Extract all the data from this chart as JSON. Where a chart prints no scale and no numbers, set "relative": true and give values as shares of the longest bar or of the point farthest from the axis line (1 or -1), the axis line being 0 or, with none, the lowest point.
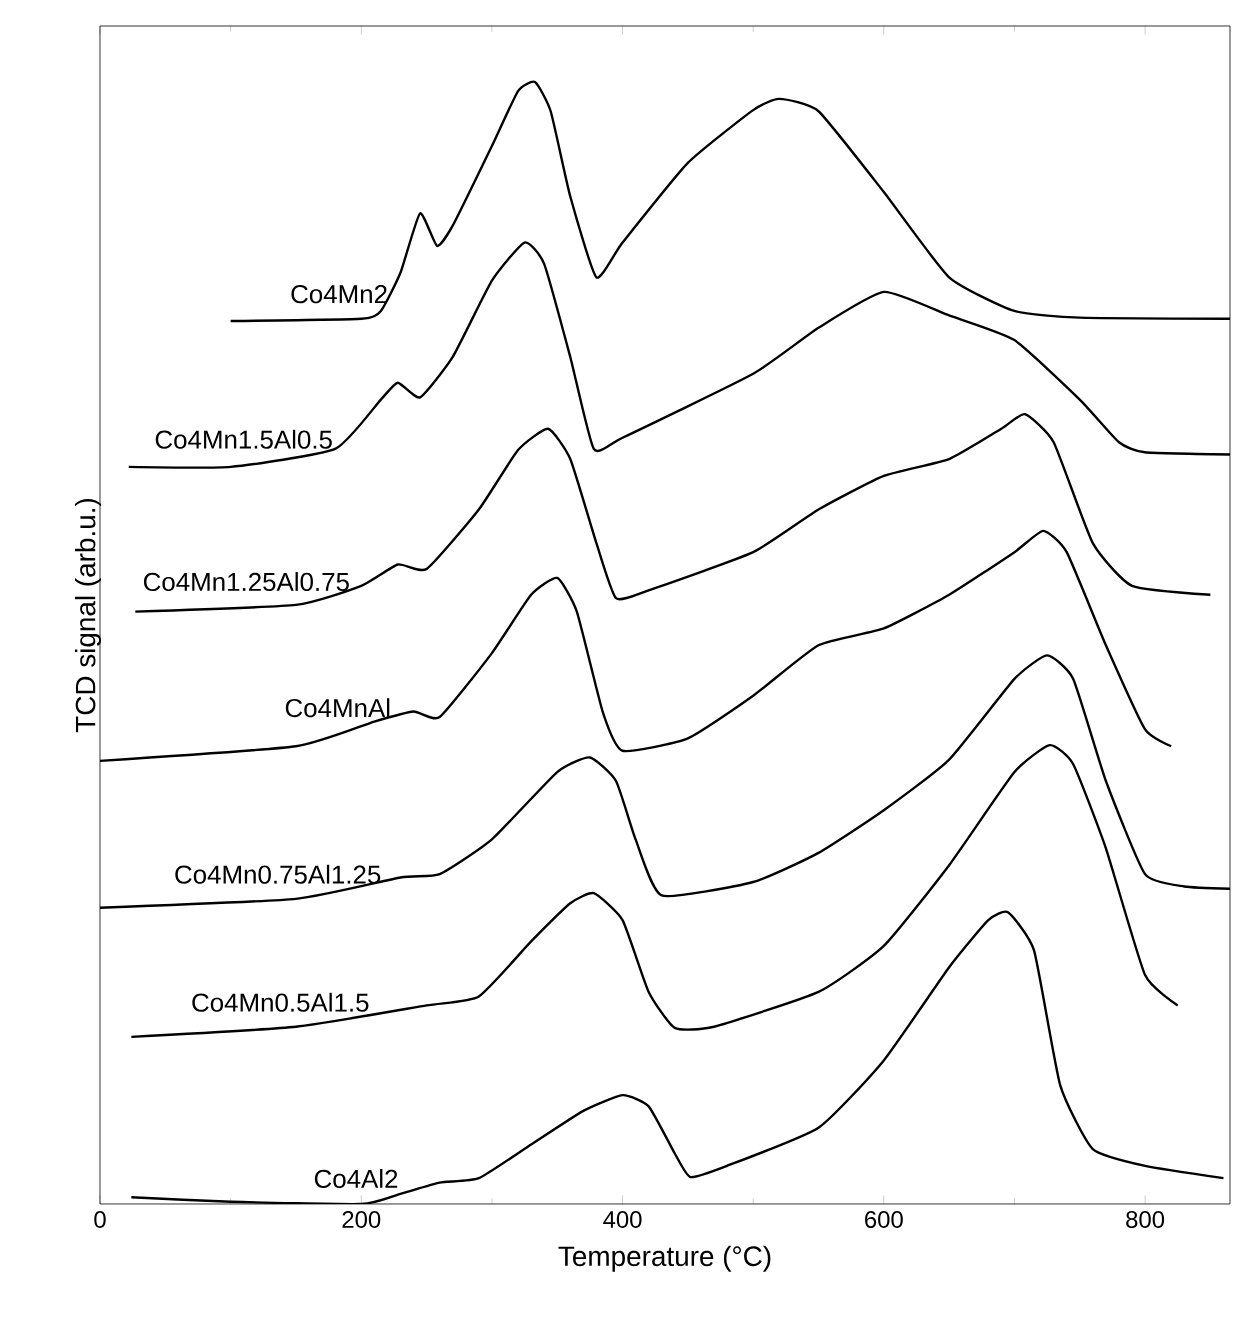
{
  "chart_data": {
    "type": "line",
    "relative": true,
    "xlabel": "Temperature (°C)",
    "ylabel": "TCD signal (arb.u.)",
    "xlim": [
      0,
      865
    ],
    "xticks": [
      0,
      200,
      400,
      600,
      800
    ],
    "grid": false,
    "legend": false,
    "marker": "none",
    "line_style": "solid",
    "series": [
      {
        "name": "Co4Mn2",
        "color": "#000000",
        "x": [
          100,
          200,
          215,
          230,
          245,
          258,
          270,
          300,
          320,
          333,
          345,
          360,
          380,
          400,
          450,
          500,
          520,
          550,
          600,
          650,
          700,
          750,
          865
        ],
        "values": [
          0.787,
          0.789,
          0.796,
          0.83,
          0.883,
          0.854,
          0.872,
          0.943,
          0.992,
          1.0,
          0.974,
          0.898,
          0.826,
          0.857,
          0.928,
          0.975,
          0.985,
          0.974,
          0.902,
          0.826,
          0.796,
          0.79,
          0.789
        ]
      },
      {
        "name": "Co4Mn1.5Al0.5",
        "color": "#000000",
        "x": [
          22,
          100,
          180,
          215,
          228,
          245,
          270,
          300,
          325,
          340,
          360,
          378,
          400,
          500,
          550,
          600,
          650,
          700,
          750,
          780,
          800,
          865
        ],
        "values": [
          0.657,
          0.657,
          0.673,
          0.717,
          0.732,
          0.719,
          0.755,
          0.823,
          0.857,
          0.838,
          0.755,
          0.673,
          0.683,
          0.74,
          0.781,
          0.813,
          0.792,
          0.77,
          0.717,
          0.679,
          0.67,
          0.668
        ]
      },
      {
        "name": "Co4Mn1.25Al0.75",
        "color": "#000000",
        "x": [
          27,
          150,
          200,
          228,
          250,
          290,
          320,
          343,
          360,
          380,
          395,
          420,
          500,
          550,
          600,
          650,
          690,
          708,
          730,
          760,
          790,
          850
        ],
        "values": [
          0.528,
          0.534,
          0.551,
          0.57,
          0.566,
          0.619,
          0.672,
          0.691,
          0.664,
          0.589,
          0.54,
          0.547,
          0.581,
          0.619,
          0.649,
          0.664,
          0.691,
          0.704,
          0.679,
          0.589,
          0.551,
          0.543
        ]
      },
      {
        "name": "Co4MnAl",
        "color": "#000000",
        "x": [
          0,
          150,
          210,
          240,
          260,
          300,
          330,
          350,
          365,
          385,
          400,
          450,
          500,
          550,
          600,
          650,
          700,
          722,
          740,
          770,
          800,
          820
        ],
        "values": [
          0.395,
          0.408,
          0.43,
          0.439,
          0.434,
          0.491,
          0.543,
          0.558,
          0.528,
          0.438,
          0.404,
          0.415,
          0.453,
          0.498,
          0.513,
          0.543,
          0.581,
          0.6,
          0.581,
          0.498,
          0.423,
          0.408
        ]
      },
      {
        "name": "Co4Mn0.75Al1.25",
        "color": "#000000",
        "x": [
          0,
          150,
          230,
          260,
          300,
          350,
          375,
          395,
          410,
          430,
          500,
          550,
          600,
          650,
          700,
          725,
          745,
          770,
          800,
          830,
          865
        ],
        "values": [
          0.264,
          0.272,
          0.291,
          0.294,
          0.325,
          0.385,
          0.398,
          0.377,
          0.325,
          0.275,
          0.287,
          0.313,
          0.351,
          0.396,
          0.468,
          0.489,
          0.468,
          0.377,
          0.294,
          0.283,
          0.281
        ]
      },
      {
        "name": "Co4Mn0.5Al1.5",
        "color": "#000000",
        "x": [
          24,
          150,
          250,
          290,
          330,
          360,
          378,
          400,
          420,
          440,
          470,
          550,
          600,
          650,
          700,
          727,
          745,
          770,
          800,
          825
        ],
        "values": [
          0.149,
          0.158,
          0.177,
          0.185,
          0.234,
          0.268,
          0.277,
          0.253,
          0.189,
          0.157,
          0.158,
          0.189,
          0.23,
          0.302,
          0.385,
          0.409,
          0.392,
          0.317,
          0.204,
          0.177
        ]
      },
      {
        "name": "Co4Al2",
        "color": "#000000",
        "x": [
          24,
          100,
          200,
          230,
          260,
          290,
          330,
          370,
          400,
          420,
          440,
          452,
          480,
          550,
          600,
          650,
          680,
          695,
          715,
          735,
          760,
          800,
          860
        ],
        "values": [
          0.006,
          0.002,
          0.0,
          0.009,
          0.019,
          0.023,
          0.053,
          0.083,
          0.097,
          0.087,
          0.045,
          0.024,
          0.034,
          0.068,
          0.128,
          0.211,
          0.253,
          0.26,
          0.226,
          0.106,
          0.049,
          0.034,
          0.023
        ]
      }
    ]
  }
}
